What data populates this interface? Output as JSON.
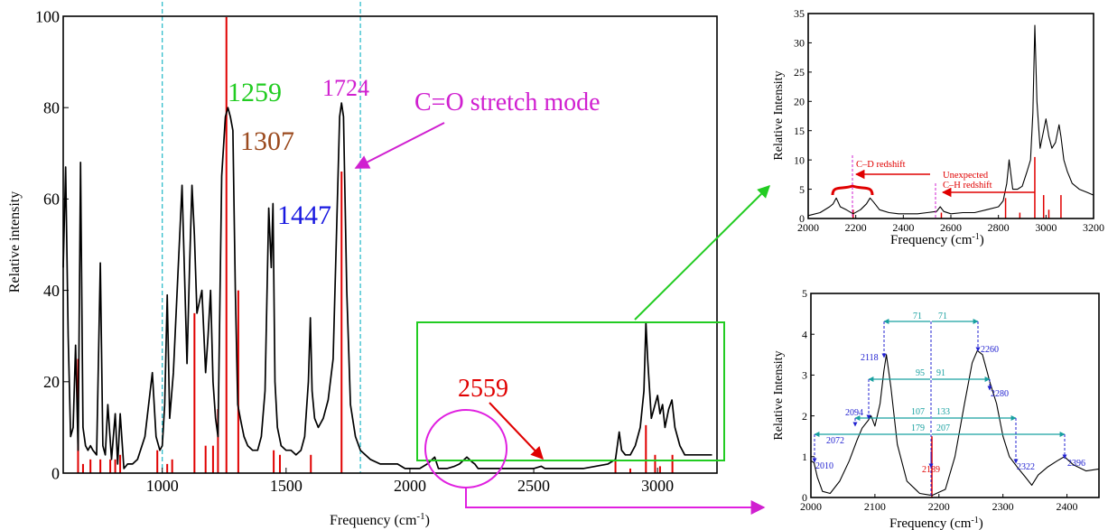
{
  "colors": {
    "red": "#e00000",
    "green": "#22cc22",
    "magenta": "#d020d0",
    "brown": "#9b4a1e",
    "blue": "#1818e0",
    "cyan": "#20b8c8",
    "teal": "#18a0a0",
    "dblue": "#2020d0"
  },
  "chart_data": [
    {
      "id": "main",
      "type": "line",
      "xlabel": "Frequency (cm",
      "xlabel_sup": "-1",
      "xlabel_end": ")",
      "ylabel": "Relative intensity",
      "xlim": [
        600,
        3240
      ],
      "ylim": [
        0,
        100
      ],
      "x_ticks": [
        1000,
        1500,
        2000,
        2500,
        3000
      ],
      "y_ticks": [
        0,
        20,
        40,
        60,
        80,
        100
      ],
      "series": [
        {
          "x": [
            600,
            610,
            620,
            630,
            640,
            650,
            660,
            670,
            680,
            690,
            700,
            710,
            720,
            735,
            750,
            760,
            770,
            780,
            795,
            810,
            820,
            830,
            845,
            860,
            870,
            880,
            900,
            930,
            960,
            975,
            990,
            1000,
            1010,
            1020,
            1030,
            1045,
            1060,
            1080,
            1100,
            1110,
            1120,
            1130,
            1140,
            1160,
            1175,
            1185,
            1195,
            1205,
            1215,
            1225,
            1240,
            1255,
            1265,
            1275,
            1285,
            1295,
            1305,
            1315,
            1330,
            1345,
            1365,
            1385,
            1400,
            1415,
            1430,
            1440,
            1447,
            1455,
            1465,
            1480,
            1500,
            1520,
            1540,
            1560,
            1575,
            1590,
            1598,
            1605,
            1615,
            1630,
            1650,
            1670,
            1690,
            1705,
            1716,
            1724,
            1732,
            1745,
            1760,
            1780,
            1800,
            1840,
            1880,
            1920,
            1950,
            1980,
            2010,
            2040,
            2070,
            2100,
            2115,
            2130,
            2150,
            2180,
            2200,
            2230,
            2250,
            2262,
            2275,
            2300,
            2330,
            2360,
            2400,
            2450,
            2500,
            2530,
            2545,
            2560,
            2600,
            2650,
            2700,
            2750,
            2800,
            2830,
            2845,
            2855,
            2870,
            2890,
            2910,
            2930,
            2945,
            2953,
            2960,
            2975,
            2990,
            3000,
            3010,
            3020,
            3030,
            3045,
            3058,
            3070,
            3090,
            3110,
            3140,
            3180,
            3220
          ],
          "values": [
            45,
            67,
            30,
            8,
            10,
            28,
            5,
            68,
            10,
            6,
            5,
            6,
            5,
            4,
            46,
            6,
            4,
            15,
            3,
            13,
            2,
            13,
            1,
            2,
            2,
            2,
            3,
            8,
            22,
            8,
            5,
            6,
            15,
            39,
            12,
            22,
            40,
            63,
            24,
            45,
            63,
            52,
            35,
            40,
            22,
            30,
            40,
            20,
            12,
            8,
            65,
            78,
            80,
            78,
            75,
            40,
            15,
            12,
            8,
            6,
            5,
            5,
            8,
            18,
            58,
            45,
            59,
            20,
            10,
            6,
            5,
            5,
            4,
            5,
            8,
            20,
            34,
            18,
            12,
            10,
            12,
            16,
            25,
            55,
            78,
            81,
            78,
            40,
            15,
            8,
            5,
            3,
            2,
            2,
            2,
            1,
            1,
            1,
            2,
            3.5,
            1,
            1,
            1,
            1.5,
            2,
            3.5,
            2.5,
            2,
            1,
            1,
            1,
            1,
            1,
            1,
            1,
            1.5,
            1,
            1,
            1,
            1,
            1,
            1.5,
            2,
            3,
            9,
            5,
            4,
            4,
            6,
            10,
            18,
            33,
            25,
            12,
            15,
            17,
            13,
            15,
            10,
            14,
            16,
            10,
            6,
            4,
            4,
            4,
            4
          ]
        }
      ],
      "sticks": {
        "x": [
          660,
          680,
          710,
          750,
          790,
          810,
          830,
          980,
          1020,
          1040,
          1130,
          1175,
          1205,
          1225,
          1259,
          1307,
          1450,
          1475,
          1600,
          1724,
          2830,
          2890,
          2953,
          2990,
          3010,
          3060
        ],
        "values": [
          25,
          2,
          3,
          3,
          3,
          3,
          4,
          5,
          2,
          3,
          35,
          6,
          6,
          14,
          100,
          40,
          5,
          4,
          4,
          66,
          3,
          1,
          10.5,
          4,
          1.5,
          4
        ]
      },
      "markers": [
        1000,
        1800
      ],
      "labels": [
        {
          "text": "1259",
          "color": "green"
        },
        {
          "text": "1307",
          "color": "brown"
        },
        {
          "text": "1447",
          "color": "blue"
        },
        {
          "text": "1724",
          "color": "magenta"
        },
        {
          "text": "C=O stretch mode",
          "color": "magenta"
        },
        {
          "text": "2559",
          "color": "red"
        }
      ]
    },
    {
      "id": "top-right",
      "type": "line",
      "xlabel": "Frequency (cm",
      "xlabel_sup": "-1",
      "xlabel_end": ")",
      "ylabel": "Relative Intensity",
      "xlim": [
        2000,
        3200
      ],
      "ylim": [
        0,
        35
      ],
      "x_ticks": [
        2000,
        2200,
        2400,
        2600,
        2800,
        3000,
        3200
      ],
      "y_ticks": [
        0,
        5,
        10,
        15,
        20,
        25,
        30,
        35
      ],
      "series": [
        {
          "x": [
            2000,
            2050,
            2090,
            2105,
            2118,
            2135,
            2160,
            2189,
            2220,
            2245,
            2260,
            2275,
            2300,
            2340,
            2380,
            2420,
            2460,
            2500,
            2540,
            2555,
            2570,
            2600,
            2650,
            2700,
            2750,
            2800,
            2820,
            2835,
            2845,
            2860,
            2880,
            2900,
            2920,
            2935,
            2945,
            2953,
            2962,
            2975,
            2990,
            3000,
            3012,
            3025,
            3040,
            3055,
            3063,
            3075,
            3090,
            3110,
            3140,
            3170,
            3200
          ],
          "values": [
            0.5,
            1,
            2,
            2.5,
            3.5,
            2,
            1.5,
            0.8,
            1.5,
            2.5,
            3.5,
            2.8,
            1.5,
            1,
            0.8,
            0.8,
            0.8,
            1,
            1.2,
            2,
            1.2,
            0.8,
            1,
            1,
            1.5,
            2,
            3,
            6,
            10,
            5,
            5,
            5.5,
            8,
            10,
            18,
            33,
            20,
            12,
            15,
            17,
            14,
            12,
            13,
            16,
            14,
            10,
            8,
            6,
            5,
            4.5,
            4
          ]
        }
      ],
      "sticks": {
        "x": [
          2189,
          2560,
          2830,
          2890,
          2953,
          2990,
          3012,
          3063
        ],
        "values": [
          1.5,
          1,
          3.5,
          1,
          10.5,
          4,
          1.5,
          4
        ]
      },
      "annotations": [
        {
          "text": "C–D redshift",
          "color": "red"
        },
        {
          "text": "Unexpected",
          "color": "red"
        },
        {
          "text": "C–H redshift",
          "color": "red"
        }
      ]
    },
    {
      "id": "bottom-right",
      "type": "line",
      "xlabel": "Frequency (cm",
      "xlabel_sup": "-1",
      "xlabel_end": ")",
      "ylabel": "Relative Intensity",
      "xlim": [
        2000,
        2450
      ],
      "ylim": [
        0,
        5
      ],
      "x_ticks": [
        2000,
        2100,
        2200,
        2300,
        2400
      ],
      "y_ticks": [
        0,
        1,
        2,
        3,
        4,
        5
      ],
      "series": [
        {
          "x": [
            2000,
            2005,
            2010,
            2018,
            2030,
            2045,
            2060,
            2072,
            2080,
            2090,
            2094,
            2100,
            2108,
            2114,
            2118,
            2125,
            2135,
            2150,
            2170,
            2189,
            2210,
            2225,
            2240,
            2252,
            2260,
            2268,
            2275,
            2280,
            2290,
            2300,
            2310,
            2322,
            2335,
            2345,
            2355,
            2370,
            2385,
            2396,
            2410,
            2430,
            2450
          ],
          "values": [
            0.9,
            0.85,
            0.5,
            0.15,
            0.1,
            0.4,
            0.9,
            1.4,
            1.7,
            1.9,
            2.0,
            1.75,
            2.3,
            3.1,
            3.5,
            2.7,
            1.3,
            0.4,
            0.1,
            0.05,
            0.2,
            1.0,
            2.3,
            3.3,
            3.6,
            3.5,
            3.1,
            2.8,
            2.3,
            1.5,
            1.0,
            0.75,
            0.5,
            0.3,
            0.55,
            0.75,
            0.9,
            1.0,
            0.8,
            0.65,
            0.7
          ]
        }
      ],
      "sticks": {
        "x": [
          2189
        ],
        "values": [
          1.5
        ]
      },
      "peak_labels": [
        {
          "text": "2010"
        },
        {
          "text": "2072"
        },
        {
          "text": "2094"
        },
        {
          "text": "2118"
        },
        {
          "text": "2189"
        },
        {
          "text": "2260"
        },
        {
          "text": "2280"
        },
        {
          "text": "2322"
        },
        {
          "text": "2396"
        }
      ],
      "span_labels": [
        {
          "text": "71"
        },
        {
          "text": "71"
        },
        {
          "text": "95"
        },
        {
          "text": "91"
        },
        {
          "text": "107"
        },
        {
          "text": "133"
        },
        {
          "text": "179"
        },
        {
          "text": "207"
        }
      ]
    }
  ]
}
